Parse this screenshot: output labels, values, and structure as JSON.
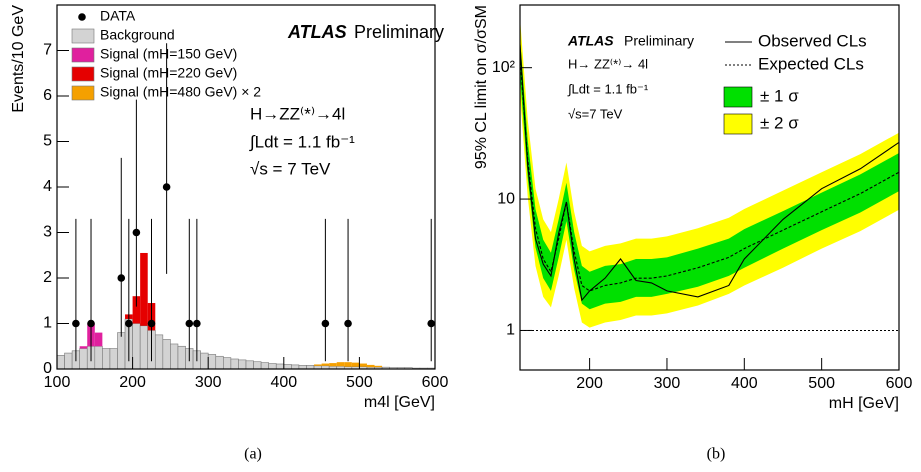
{
  "chart_data": [
    {
      "type": "histogram",
      "xlabel": "m4l [GeV]",
      "ylabel": "Events/10 GeV",
      "annotations": [
        "ATLAS",
        "Preliminary",
        "H→ZZ⁽*⁾→4l",
        "∫Ldt = 1.1 fb⁻¹",
        "√s = 7 TeV"
      ],
      "bins": [
        100,
        110,
        120,
        130,
        140,
        150,
        160,
        170,
        180,
        190,
        200,
        210,
        220,
        230,
        240,
        250,
        260,
        270,
        280,
        290,
        300,
        310,
        320,
        330,
        340,
        350,
        360,
        370,
        380,
        390,
        400,
        410,
        420,
        430,
        440,
        450,
        460,
        470,
        480,
        490,
        500,
        510,
        520,
        530,
        540,
        550,
        560,
        570,
        580,
        590,
        600
      ],
      "series": [
        {
          "name": "Background",
          "color": "#d3d3d3",
          "values": [
            0.3,
            0.35,
            0.4,
            0.45,
            0.5,
            0.5,
            0.45,
            0.45,
            0.8,
            1.1,
            1.0,
            0.95,
            0.85,
            0.75,
            0.65,
            0.55,
            0.5,
            0.45,
            0.4,
            0.35,
            0.32,
            0.28,
            0.25,
            0.22,
            0.2,
            0.18,
            0.16,
            0.14,
            0.12,
            0.11,
            0.1,
            0.09,
            0.08,
            0.08,
            0.07,
            0.07,
            0.06,
            0.06,
            0.05,
            0.05,
            0.05,
            0.04,
            0.04,
            0.04,
            0.03,
            0.03,
            0.03,
            0.02,
            0.02,
            0.02
          ]
        },
        {
          "name": "Signal (mH=150 GeV)",
          "color": "#e0209e",
          "values": [
            0,
            0,
            0,
            0.05,
            0.5,
            0.3,
            0,
            0,
            0,
            0,
            0,
            0,
            0,
            0,
            0,
            0,
            0,
            0,
            0,
            0,
            0,
            0,
            0,
            0,
            0,
            0,
            0,
            0,
            0,
            0,
            0,
            0,
            0,
            0,
            0,
            0,
            0,
            0,
            0,
            0,
            0,
            0,
            0,
            0,
            0,
            0,
            0,
            0,
            0,
            0
          ]
        },
        {
          "name": "Signal (mH=220 GeV)",
          "color": "#e50000",
          "values": [
            0,
            0,
            0,
            0,
            0,
            0,
            0,
            0,
            0,
            0.1,
            0.6,
            1.6,
            0.6,
            0,
            0,
            0,
            0,
            0,
            0,
            0,
            0,
            0,
            0,
            0,
            0,
            0,
            0,
            0,
            0,
            0,
            0,
            0,
            0,
            0,
            0,
            0,
            0,
            0,
            0,
            0,
            0,
            0,
            0,
            0,
            0,
            0,
            0,
            0,
            0,
            0
          ]
        },
        {
          "name": "Signal (mH=480 GeV) × 2",
          "color": "#f5a000",
          "values": [
            0,
            0,
            0,
            0,
            0,
            0,
            0,
            0,
            0,
            0,
            0,
            0,
            0,
            0,
            0,
            0,
            0,
            0,
            0,
            0,
            0,
            0,
            0,
            0,
            0,
            0,
            0,
            0,
            0,
            0,
            0,
            0,
            0,
            0,
            0.03,
            0.05,
            0.07,
            0.09,
            0.1,
            0.09,
            0.07,
            0.05,
            0.03,
            0,
            0,
            0,
            0,
            0,
            0,
            0
          ]
        }
      ],
      "data": {
        "name": "DATA",
        "color": "#000000",
        "x": [
          125,
          145,
          185,
          195,
          205,
          225,
          245,
          275,
          285,
          455,
          485,
          595
        ],
        "values": [
          1,
          1,
          2,
          1,
          3,
          1,
          4,
          1,
          1,
          1,
          1,
          1
        ],
        "err_low": [
          0.83,
          0.83,
          1.29,
          0.83,
          1.63,
          0.83,
          1.91,
          0.83,
          0.83,
          0.83,
          0.83,
          0.83
        ],
        "err_high": [
          2.3,
          2.3,
          2.64,
          2.3,
          2.92,
          2.3,
          3.16,
          2.3,
          2.3,
          2.3,
          2.3,
          2.3
        ]
      },
      "xlim": [
        100,
        600
      ],
      "xticks": [
        100,
        200,
        300,
        400,
        500,
        600
      ],
      "ylim": [
        0,
        8
      ],
      "yticks": [
        0,
        1,
        2,
        3,
        4,
        5,
        6,
        7
      ]
    },
    {
      "type": "line",
      "log_y": true,
      "xlabel": "mH [GeV]",
      "ylabel": "95% CL limit on σ/σSM",
      "annotations": [
        "ATLAS",
        "Preliminary",
        "H→ ZZ⁽*⁾→ 4l",
        "∫Ldt = 1.1 fb⁻¹",
        "√s=7 TeV"
      ],
      "x": [
        110,
        120,
        130,
        140,
        150,
        160,
        170,
        180,
        190,
        200,
        220,
        240,
        260,
        280,
        300,
        340,
        380,
        400,
        450,
        500,
        550,
        600
      ],
      "series": [
        {
          "name": "Observed CLs",
          "color": "#000000",
          "dash": false,
          "values": [
            150,
            18,
            5,
            3.2,
            2.6,
            5.5,
            9.5,
            3.5,
            1.7,
            2.0,
            2.5,
            3.5,
            2.4,
            2.3,
            2.0,
            1.8,
            2.2,
            3.5,
            7,
            12,
            17,
            27
          ]
        },
        {
          "name": "Expected CLs",
          "color": "#000000",
          "dash": true,
          "values": [
            120,
            20,
            6,
            3.5,
            2.8,
            5,
            9.5,
            4,
            2.2,
            2.0,
            2.2,
            2.3,
            2.5,
            2.5,
            2.6,
            3.0,
            3.6,
            4.2,
            5.8,
            8,
            11,
            16
          ]
        }
      ],
      "bands": [
        {
          "name": "± 2 σ",
          "color": "#ffff00",
          "low": [
            62,
            10.4,
            3.1,
            1.8,
            1.5,
            2.6,
            4.9,
            2.1,
            1.15,
            1.05,
            1.15,
            1.2,
            1.3,
            1.3,
            1.35,
            1.55,
            1.9,
            2.2,
            3.0,
            4.2,
            5.7,
            8.3
          ],
          "high": [
            240,
            40,
            12,
            7,
            5.6,
            10,
            19,
            8,
            4.4,
            4.0,
            4.4,
            4.6,
            5.0,
            5.0,
            5.2,
            6.0,
            7.2,
            8.4,
            11.6,
            16,
            22,
            32
          ]
        },
        {
          "name": "± 1 σ",
          "color": "#00e000",
          "low": [
            86,
            14.4,
            4.3,
            2.5,
            2.0,
            3.6,
            6.8,
            2.9,
            1.6,
            1.45,
            1.6,
            1.65,
            1.8,
            1.8,
            1.9,
            2.15,
            2.6,
            3.0,
            4.2,
            5.8,
            7.9,
            11.5
          ],
          "high": [
            170,
            28,
            8.4,
            4.9,
            3.9,
            7,
            13.3,
            5.6,
            3.1,
            2.8,
            3.1,
            3.2,
            3.5,
            3.5,
            3.6,
            4.2,
            5.0,
            5.9,
            8.1,
            11.2,
            15.4,
            22.4
          ]
        }
      ],
      "refline": 1,
      "xlim": [
        110,
        600
      ],
      "xticks": [
        200,
        300,
        400,
        500,
        600
      ],
      "ylim": [
        0.5,
        300
      ],
      "yticks": [
        1,
        10,
        {
          "value": 100,
          "label": "10²"
        }
      ]
    }
  ],
  "captions": [
    "(a)",
    "(b)"
  ]
}
